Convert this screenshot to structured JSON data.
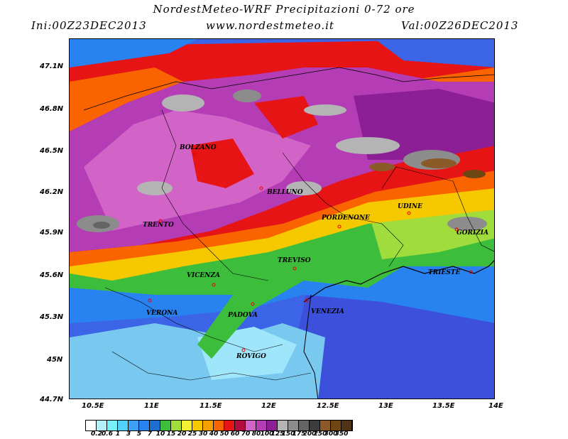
{
  "header": {
    "title": "NordestMeteo-WRF Precipitazioni 0-72 ore",
    "init": "Ini:00Z23DEC2013",
    "site": "www.nordestmeteo.it",
    "valid": "Val:00Z26DEC2013"
  },
  "axes": {
    "lat_ticks": [
      "47.1N",
      "46.8N",
      "46.5N",
      "46.2N",
      "45.9N",
      "45.6N",
      "45.3N",
      "45N",
      "44.7N"
    ],
    "lon_ticks": [
      "10.5E",
      "11E",
      "11.5E",
      "12E",
      "12.5E",
      "13E",
      "13.5E",
      "14E"
    ]
  },
  "cities": [
    {
      "name": "BOLZANO"
    },
    {
      "name": "BELLUNO"
    },
    {
      "name": "UDINE"
    },
    {
      "name": "PORDENONE"
    },
    {
      "name": "GORIZIA"
    },
    {
      "name": "TRENTO"
    },
    {
      "name": "TREVISO"
    },
    {
      "name": "TRIESTE"
    },
    {
      "name": "VICENZA"
    },
    {
      "name": "VERONA"
    },
    {
      "name": "PADOVA"
    },
    {
      "name": "VENEZIA"
    },
    {
      "name": "ROVIGO"
    }
  ],
  "legend": {
    "labels": [
      "0.2",
      "0.6",
      "1",
      "3",
      "5",
      "7",
      "10",
      "15",
      "20",
      "25",
      "30",
      "40",
      "50",
      "60",
      "70",
      "80",
      "100",
      "125",
      "150",
      "175",
      "200",
      "250",
      "300",
      "350"
    ],
    "colors": [
      "#ffffff",
      "#b4f0fa",
      "#78f0fa",
      "#50d2fa",
      "#3ca0f5",
      "#2882f0",
      "#1e6ed2",
      "#3cbe3c",
      "#a0dc3c",
      "#f5f032",
      "#f5c800",
      "#f5a000",
      "#fa6400",
      "#e61414",
      "#b40a3c",
      "#d264c8",
      "#b43cb4",
      "#8c1e96",
      "#b4b4b4",
      "#8c8c8c",
      "#646464",
      "#3c3c3c",
      "#8c5a28",
      "#6e4614",
      "#503214"
    ]
  }
}
